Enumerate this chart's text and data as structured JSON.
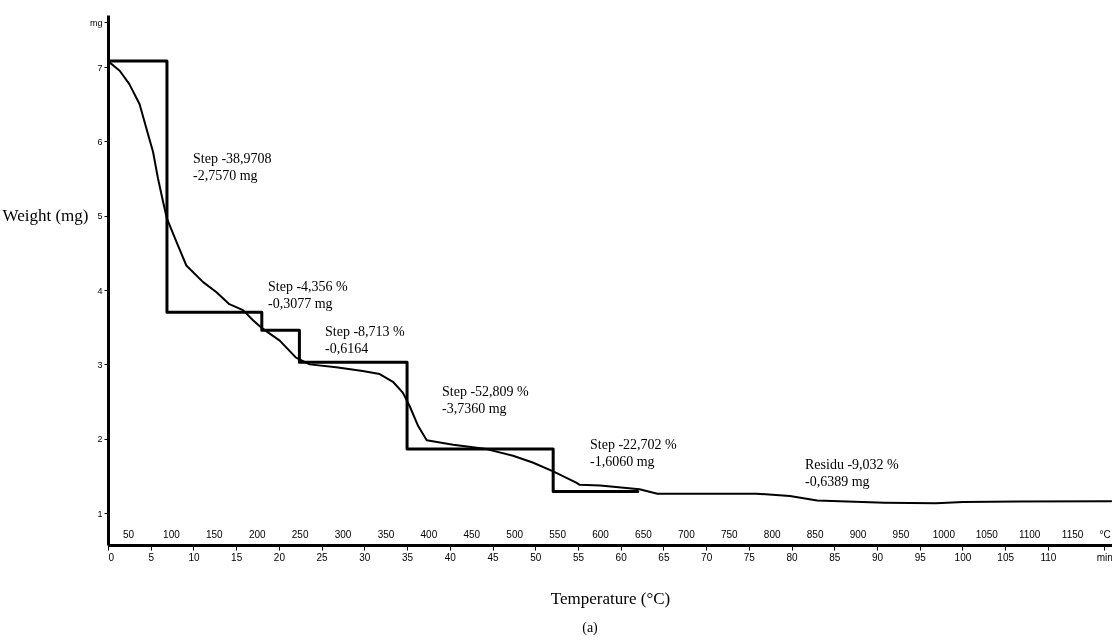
{
  "chart_data": {
    "type": "line",
    "xlabel": "Temperature (°C)",
    "ylabel": "Weight (mg)",
    "xlim": [
      0,
      117.5
    ],
    "xticks": [
      0,
      5,
      10,
      15,
      20,
      25,
      30,
      35,
      40,
      45,
      50,
      55,
      60,
      65,
      70,
      75,
      80,
      85,
      90,
      95,
      100,
      105,
      110,
      {
        "value": 116.6,
        "label": "min"
      }
    ],
    "x2lim": [
      26.7,
      1196.5
    ],
    "x2ticks": [
      50,
      100,
      150,
      200,
      250,
      300,
      350,
      400,
      450,
      500,
      550,
      600,
      650,
      700,
      750,
      800,
      850,
      900,
      950,
      1000,
      1050,
      1100,
      1150,
      {
        "value": 1188,
        "label": "°C"
      }
    ],
    "ylim": [
      0.57,
      7.7
    ],
    "yticks": [
      1,
      2,
      3,
      4,
      5,
      6,
      7,
      {
        "value": 7.6,
        "label": "mg"
      }
    ],
    "series": [
      {
        "color": "#000000",
        "x": [
          0,
          1.37,
          2.5,
          3.7,
          4.7,
          5.27,
          5.85,
          6.44,
          6.9,
          8.0,
          9.17,
          11.1,
          12.7,
          14.2,
          15.8,
          17.0,
          18.1,
          20.1,
          22.0,
          23.6,
          26.7,
          29.8,
          31.8,
          33.4,
          34.5,
          35.3,
          36.3,
          37.3,
          40.4,
          44.3,
          47.4,
          49.7,
          52.1,
          54.8,
          55.2,
          57.6,
          62.2,
          64.3,
          75.9,
          79.8,
          83.0,
          90.9,
          96.9,
          100.1,
          117.4
        ],
        "values": [
          7.08,
          6.95,
          6.77,
          6.5,
          6.09,
          5.86,
          5.5,
          5.19,
          4.96,
          4.65,
          4.33,
          4.11,
          3.97,
          3.81,
          3.73,
          3.59,
          3.48,
          3.32,
          3.09,
          3.0,
          2.96,
          2.91,
          2.87,
          2.76,
          2.62,
          2.44,
          2.17,
          1.98,
          1.92,
          1.86,
          1.77,
          1.68,
          1.56,
          1.41,
          1.38,
          1.37,
          1.32,
          1.26,
          1.26,
          1.23,
          1.17,
          1.14,
          1.13,
          1.15,
          1.16
        ]
      },
      {
        "type": "step",
        "color": "#000000",
        "x": [
          0,
          6.9,
          18.0,
          22.4,
          35.0,
          52.1,
          62.0
        ],
        "values": [
          7.08,
          3.7,
          3.46,
          3.03,
          1.86,
          1.29,
          1.29
        ]
      }
    ],
    "annotations": [
      "Step -38,9708\n-2,7570 mg",
      "Step -4,356 %\n-0,3077 mg",
      "Step -8,713 %\n-0,6164",
      "Step -52,809 %\n-3,7360 mg",
      "Step -22,702 %\n-1,6060 mg",
      "Residu -9,032 %\n-0,6389 mg",
      "(a)"
    ]
  }
}
